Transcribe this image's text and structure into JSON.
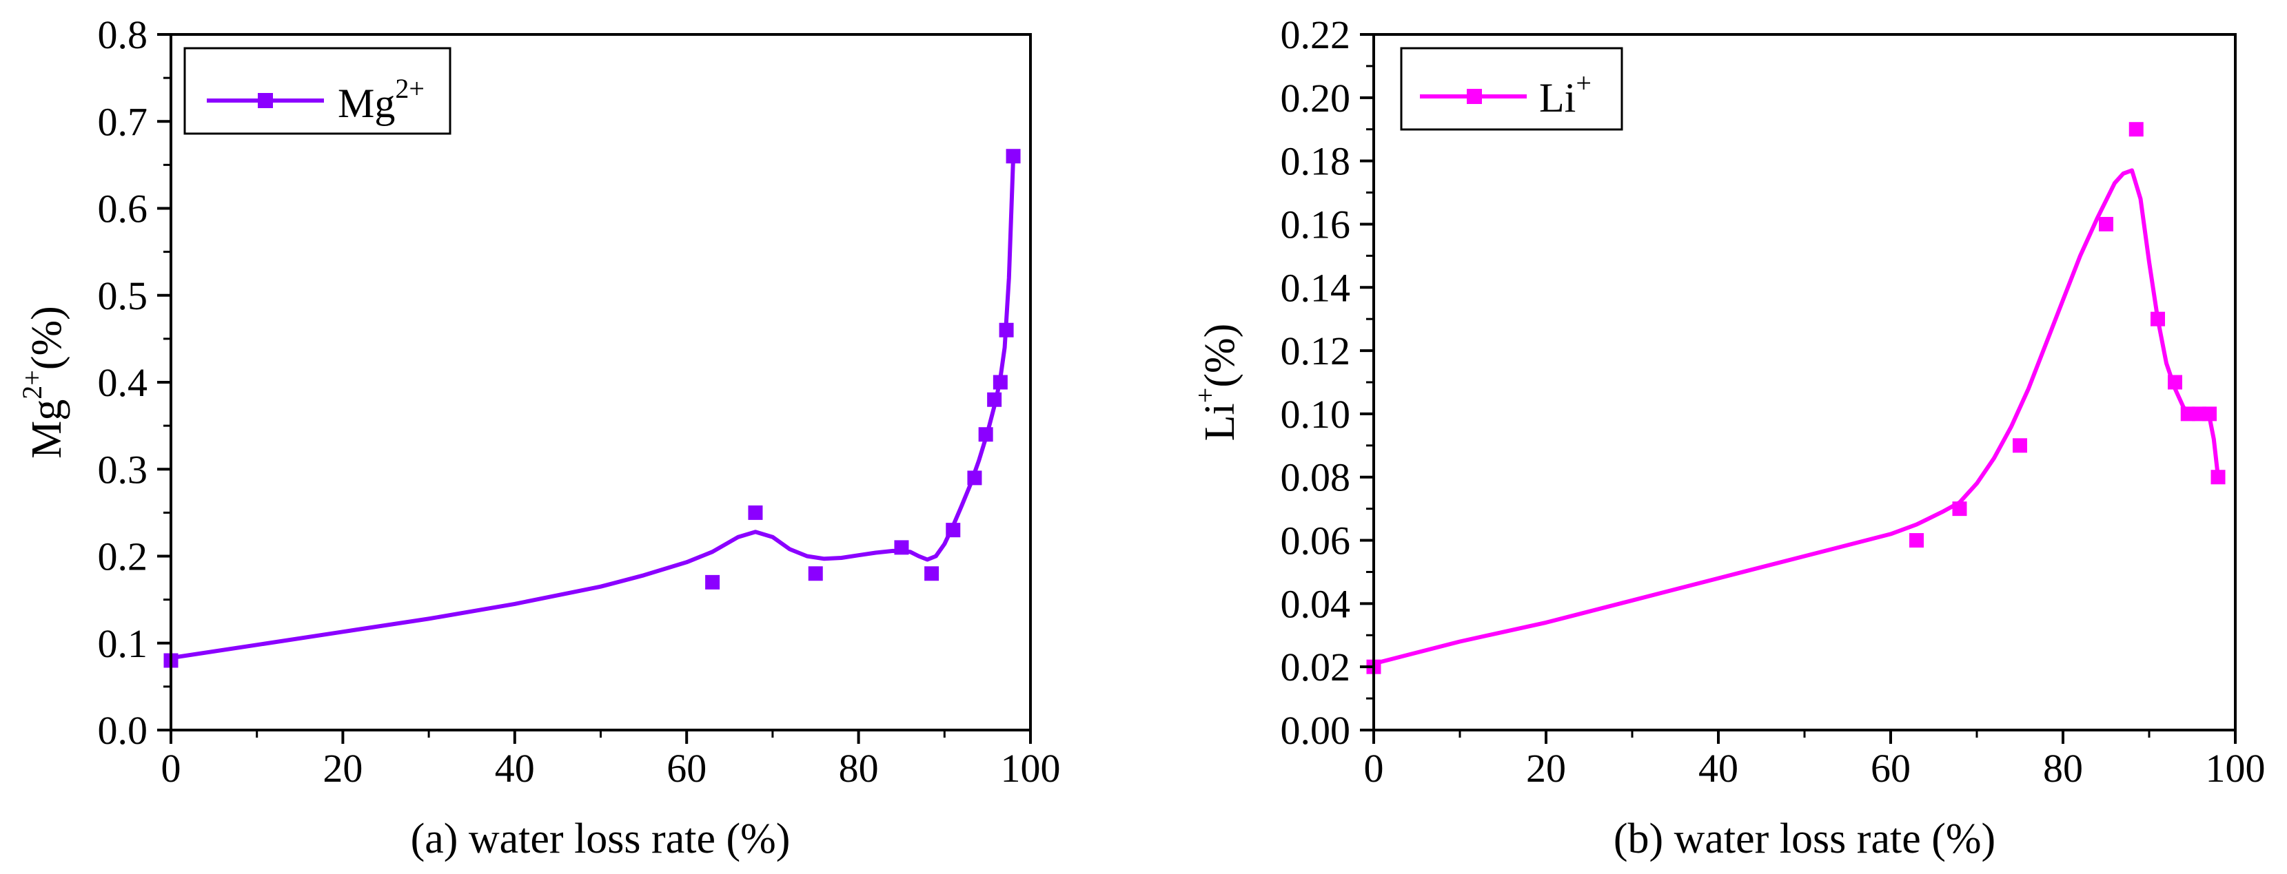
{
  "chart_data": [
    {
      "type": "scatter",
      "panel": "a",
      "title": "",
      "xlabel": "(a) water loss rate (%)",
      "ylabel_base": "Mg",
      "ylabel_sup": "2+",
      "ylabel_tail": "(%)",
      "xlim": [
        0,
        100
      ],
      "ylim": [
        0.0,
        0.8
      ],
      "xticks": [
        0,
        20,
        40,
        60,
        80,
        100
      ],
      "xtick_labels": [
        "0",
        "20",
        "40",
        "60",
        "80",
        "100"
      ],
      "yticks": [
        0.0,
        0.1,
        0.2,
        0.3,
        0.4,
        0.5,
        0.6,
        0.7,
        0.8
      ],
      "ytick_labels": [
        "0.0",
        "0.1",
        "0.2",
        "0.3",
        "0.4",
        "0.5",
        "0.6",
        "0.7",
        "0.8"
      ],
      "grid": false,
      "legend": {
        "position": "top-left",
        "label_base": "Mg",
        "label_sup": "2+"
      },
      "color": "#8B00FF",
      "series": [
        {
          "name": "Mg2+",
          "points": [
            [
              0,
              0.08
            ],
            [
              63,
              0.17
            ],
            [
              68,
              0.25
            ],
            [
              75,
              0.18
            ],
            [
              85,
              0.21
            ],
            [
              88.5,
              0.18
            ],
            [
              91,
              0.23
            ],
            [
              93.5,
              0.29
            ],
            [
              94.8,
              0.34
            ],
            [
              95.8,
              0.38
            ],
            [
              96.5,
              0.4
            ],
            [
              97.2,
              0.46
            ],
            [
              98,
              0.66
            ]
          ]
        }
      ],
      "fit_curve": [
        [
          0,
          0.083
        ],
        [
          10,
          0.098
        ],
        [
          20,
          0.113
        ],
        [
          30,
          0.128
        ],
        [
          40,
          0.145
        ],
        [
          50,
          0.165
        ],
        [
          55,
          0.178
        ],
        [
          60,
          0.193
        ],
        [
          63,
          0.205
        ],
        [
          66,
          0.222
        ],
        [
          68,
          0.228
        ],
        [
          70,
          0.222
        ],
        [
          72,
          0.208
        ],
        [
          74,
          0.2
        ],
        [
          76,
          0.197
        ],
        [
          78,
          0.198
        ],
        [
          80,
          0.201
        ],
        [
          82,
          0.204
        ],
        [
          84,
          0.206
        ],
        [
          86,
          0.205
        ],
        [
          87,
          0.2
        ],
        [
          88,
          0.196
        ],
        [
          89,
          0.2
        ],
        [
          90,
          0.214
        ],
        [
          91,
          0.235
        ],
        [
          92,
          0.258
        ],
        [
          93,
          0.282
        ],
        [
          94,
          0.31
        ],
        [
          95,
          0.342
        ],
        [
          96,
          0.38
        ],
        [
          96.5,
          0.405
        ],
        [
          97,
          0.44
        ],
        [
          97.5,
          0.52
        ],
        [
          98,
          0.66
        ]
      ]
    },
    {
      "type": "scatter",
      "panel": "b",
      "title": "",
      "xlabel": "(b) water loss rate (%)",
      "ylabel_base": "Li",
      "ylabel_sup": "+",
      "ylabel_tail": "(%)",
      "xlim": [
        0,
        100
      ],
      "ylim": [
        0.0,
        0.22
      ],
      "xticks": [
        0,
        20,
        40,
        60,
        80,
        100
      ],
      "xtick_labels": [
        "0",
        "20",
        "40",
        "60",
        "80",
        "100"
      ],
      "yticks": [
        0.0,
        0.02,
        0.04,
        0.06,
        0.08,
        0.1,
        0.12,
        0.14,
        0.16,
        0.18,
        0.2,
        0.22
      ],
      "ytick_labels": [
        "0.00",
        "0.02",
        "0.04",
        "0.06",
        "0.08",
        "0.10",
        "0.12",
        "0.14",
        "0.16",
        "0.18",
        "0.20",
        "0.22"
      ],
      "grid": false,
      "legend": {
        "position": "top-left",
        "label_base": "Li",
        "label_sup": "+"
      },
      "color": "#FF00FF",
      "series": [
        {
          "name": "Li+",
          "points": [
            [
              0,
              0.02
            ],
            [
              63,
              0.06
            ],
            [
              68,
              0.07
            ],
            [
              75,
              0.09
            ],
            [
              85,
              0.16
            ],
            [
              88.5,
              0.19
            ],
            [
              91,
              0.13
            ],
            [
              93,
              0.11
            ],
            [
              94.5,
              0.1
            ],
            [
              95.8,
              0.1
            ],
            [
              97,
              0.1
            ],
            [
              98,
              0.08
            ]
          ]
        }
      ],
      "fit_curve": [
        [
          0,
          0.021
        ],
        [
          10,
          0.028
        ],
        [
          20,
          0.034
        ],
        [
          30,
          0.041
        ],
        [
          40,
          0.048
        ],
        [
          50,
          0.055
        ],
        [
          60,
          0.062
        ],
        [
          63,
          0.065
        ],
        [
          66,
          0.069
        ],
        [
          68,
          0.072
        ],
        [
          70,
          0.078
        ],
        [
          72,
          0.086
        ],
        [
          74,
          0.096
        ],
        [
          76,
          0.108
        ],
        [
          78,
          0.122
        ],
        [
          80,
          0.136
        ],
        [
          82,
          0.15
        ],
        [
          84,
          0.162
        ],
        [
          86,
          0.173
        ],
        [
          87,
          0.176
        ],
        [
          88,
          0.177
        ],
        [
          89,
          0.168
        ],
        [
          90,
          0.148
        ],
        [
          91,
          0.13
        ],
        [
          92,
          0.116
        ],
        [
          93,
          0.108
        ],
        [
          94,
          0.102
        ],
        [
          95,
          0.1
        ],
        [
          96,
          0.1
        ],
        [
          97,
          0.099
        ],
        [
          97.5,
          0.092
        ],
        [
          98,
          0.08
        ]
      ]
    }
  ]
}
